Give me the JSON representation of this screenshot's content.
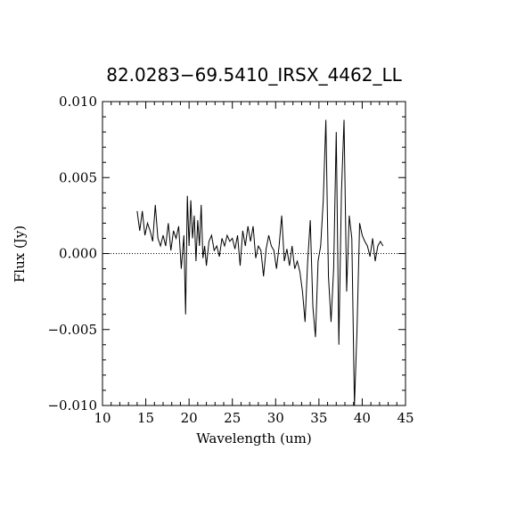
{
  "chart_data": {
    "type": "line",
    "title": "82.0283−69.5410_IRSX_4462_LL",
    "xlabel": "Wavelength (um)",
    "ylabel": "Flux (Jy)",
    "xlim": [
      10,
      45
    ],
    "ylim": [
      -0.01,
      0.01
    ],
    "x_ticks": [
      10,
      15,
      20,
      25,
      30,
      35,
      40,
      45
    ],
    "x_tick_labels": [
      "10",
      "15",
      "20",
      "25",
      "30",
      "35",
      "40",
      "45"
    ],
    "y_ticks": [
      -0.01,
      -0.005,
      0.0,
      0.005,
      0.01
    ],
    "y_tick_labels": [
      "−0.010",
      "−0.005",
      "0.000",
      "0.005",
      "0.010"
    ],
    "reference_line": {
      "y": 0.0,
      "style": "dotted"
    },
    "grid": false,
    "series": [
      {
        "x": [
          14.0,
          14.3,
          14.6,
          14.9,
          15.2,
          15.5,
          15.8,
          16.1,
          16.4,
          16.7,
          17.0,
          17.3,
          17.6,
          17.9,
          18.2,
          18.5,
          18.8,
          19.1,
          19.4,
          19.6,
          19.8,
          20.0,
          20.2,
          20.4,
          20.6,
          20.8,
          21.0,
          21.2,
          21.4,
          21.6,
          21.8,
          22.0,
          22.3,
          22.6,
          22.9,
          23.2,
          23.5,
          23.8,
          24.1,
          24.4,
          24.7,
          25.0,
          25.3,
          25.6,
          25.9,
          26.2,
          26.5,
          26.8,
          27.1,
          27.4,
          27.7,
          28.0,
          28.3,
          28.6,
          28.9,
          29.2,
          29.5,
          29.8,
          30.1,
          30.4,
          30.7,
          31.0,
          31.3,
          31.6,
          31.9,
          32.2,
          32.5,
          32.8,
          33.1,
          33.4,
          33.7,
          34.0,
          34.3,
          34.6,
          34.9,
          35.2,
          35.5,
          35.8,
          36.1,
          36.4,
          36.7,
          37.0,
          37.3,
          37.6,
          37.9,
          38.2,
          38.5,
          38.8,
          39.1,
          39.4,
          39.7,
          40.0,
          40.3,
          40.6,
          40.9,
          41.2,
          41.5,
          41.8,
          42.1,
          42.4
        ],
        "y": [
          0.0028,
          0.0015,
          0.0028,
          0.0012,
          0.002,
          0.0015,
          0.0008,
          0.0032,
          0.001,
          0.0005,
          0.0012,
          0.0005,
          0.002,
          0.0002,
          0.0015,
          0.001,
          0.0018,
          -0.001,
          0.0012,
          -0.004,
          0.0038,
          0.0005,
          0.0035,
          0.001,
          0.0025,
          -0.0005,
          0.0022,
          0.0005,
          0.0032,
          -0.0003,
          0.0005,
          -0.0008,
          0.0008,
          0.0012,
          0.0002,
          0.0005,
          -0.0002,
          0.001,
          0.0005,
          0.0012,
          0.0008,
          0.001,
          0.0003,
          0.0012,
          -0.0008,
          0.0015,
          0.0005,
          0.0018,
          0.0008,
          0.0018,
          -0.0003,
          0.0005,
          0.0002,
          -0.0015,
          0.0003,
          0.0012,
          0.0005,
          0.0002,
          -0.001,
          0.0005,
          0.0025,
          -0.0005,
          0.0003,
          -0.0008,
          0.0005,
          -0.001,
          -0.0005,
          -0.0012,
          -0.0025,
          -0.0045,
          -0.0005,
          0.0022,
          -0.0035,
          -0.0055,
          -0.0005,
          0.0005,
          0.0035,
          0.0088,
          -0.0015,
          -0.0045,
          -0.001,
          0.008,
          -0.006,
          0.004,
          0.0088,
          -0.0025,
          0.0025,
          0.001,
          -0.01,
          -0.005,
          0.002,
          0.0012,
          0.0008,
          0.0005,
          -0.0002,
          0.001,
          -0.0005,
          0.0005,
          0.0008,
          0.0005
        ],
        "color": "#000000"
      }
    ]
  }
}
